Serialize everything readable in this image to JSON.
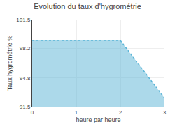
{
  "chart_data": {
    "type": "area",
    "title": "Evolution du taux d'hygrométrie",
    "xlabel": "heure par heure",
    "ylabel": "Taux hygrométrie %",
    "x": [
      0,
      2,
      3
    ],
    "values": [
      99.1,
      99.1,
      92.5
    ],
    "xlim": [
      0,
      3
    ],
    "ylim": [
      91.5,
      101.5
    ],
    "xticks": [
      0,
      1,
      2,
      3
    ],
    "yticks": [
      91.5,
      94.8,
      98.2,
      101.5
    ],
    "color": "#5ab4d6",
    "line_style": "dotted",
    "grid": true
  }
}
